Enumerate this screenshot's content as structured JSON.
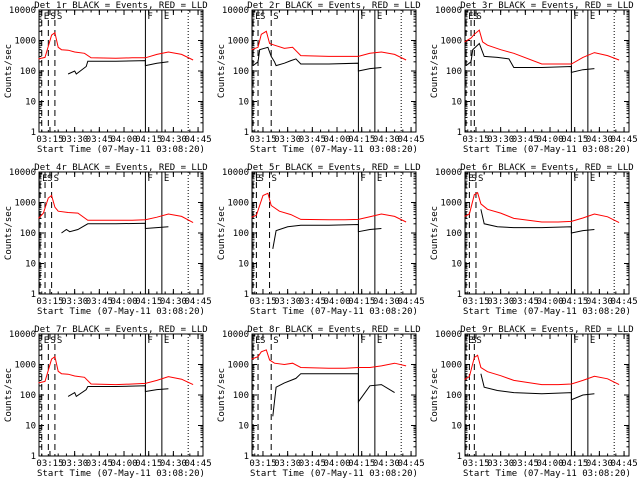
{
  "chart_data": [
    {
      "type": "line",
      "title": "Det_1r BLACK = Events, RED = LLD",
      "xlabel": "Start Time (07-May-11 03:08:20)",
      "ylabel": "Counts/sec",
      "ylim": [
        1,
        10000
      ],
      "yscale": "log",
      "ytick_labels": [
        "1",
        "10",
        "100",
        "1000",
        "10000"
      ],
      "xtick_labels": [
        "03:15",
        "03:30",
        "03:45",
        "04:00",
        "04:15",
        "04:30",
        "04:45"
      ],
      "markers": [
        {
          "label": "E",
          "x": "03:10"
        },
        {
          "label": "S",
          "x": "03:14"
        },
        {
          "label": "S",
          "x": "03:18"
        },
        {
          "label": "F",
          "x": "04:13"
        },
        {
          "label": "E",
          "x": "04:23"
        }
      ],
      "series": [
        {
          "color": "#000000",
          "x": [
            "03:26",
            "03:30",
            "03:31",
            "03:37",
            "03:38",
            "03:55",
            "04:13",
            "04:13",
            "04:20",
            "04:27"
          ],
          "y": [
            80,
            100,
            80,
            140,
            210,
            210,
            220,
            150,
            180,
            200
          ]
        },
        {
          "color": "#ff0000",
          "x": [
            "03:08",
            "03:12",
            "03:16",
            "03:18",
            "03:20",
            "03:22",
            "03:26",
            "03:30",
            "03:36",
            "03:40",
            "03:55",
            "04:05",
            "04:13",
            "04:20",
            "04:27",
            "04:35",
            "04:42"
          ],
          "y": [
            250,
            280,
            1500,
            1800,
            600,
            500,
            480,
            420,
            380,
            270,
            260,
            270,
            270,
            350,
            420,
            350,
            230
          ]
        }
      ]
    },
    {
      "type": "line",
      "title": "Det_2r BLACK = Events, RED = LLD",
      "xlabel": "Start Time (07-May-11 03:08:20)",
      "ylabel": "Counts/sec",
      "ylim": [
        1,
        10000
      ],
      "yscale": "log",
      "ytick_labels": [
        "1",
        "10",
        "100",
        "1000",
        "10000"
      ],
      "xtick_labels": [
        "03:15",
        "03:30",
        "03:45",
        "04:00",
        "04:15",
        "04:30",
        "04:45"
      ],
      "markers": [
        {
          "label": "E",
          "x": "03:09"
        },
        {
          "label": "S",
          "x": "03:12"
        },
        {
          "label": "S",
          "x": "03:20"
        },
        {
          "label": "F",
          "x": "04:13"
        },
        {
          "label": "E",
          "x": "04:23"
        }
      ],
      "series": [
        {
          "color": "#000000",
          "x": [
            "03:09",
            "03:12",
            "03:13",
            "03:18",
            "03:20",
            "03:22",
            "03:23",
            "03:28",
            "03:32",
            "03:35",
            "03:38",
            "03:55",
            "04:13",
            "04:13",
            "04:20",
            "04:27"
          ],
          "y": [
            150,
            200,
            500,
            600,
            300,
            200,
            150,
            180,
            220,
            250,
            170,
            170,
            180,
            100,
            120,
            130
          ]
        },
        {
          "color": "#ff0000",
          "x": [
            "03:08",
            "03:12",
            "03:14",
            "03:17",
            "03:19",
            "03:22",
            "03:28",
            "03:33",
            "03:38",
            "03:55",
            "04:05",
            "04:13",
            "04:20",
            "04:27",
            "04:35",
            "04:42"
          ],
          "y": [
            500,
            600,
            1600,
            2000,
            800,
            700,
            550,
            600,
            320,
            300,
            300,
            300,
            380,
            420,
            350,
            230
          ]
        }
      ]
    },
    {
      "type": "line",
      "title": "Det_3r BLACK = Events, RED = LLD",
      "xlabel": "Start Time (07-May-11 03:08:20)",
      "ylabel": "Counts/sec",
      "ylim": [
        1,
        10000
      ],
      "yscale": "log",
      "ytick_labels": [
        "1",
        "10",
        "100",
        "1000",
        "10000"
      ],
      "xtick_labels": [
        "03:15",
        "03:30",
        "03:45",
        "04:00",
        "04:15",
        "04:30",
        "04:45"
      ],
      "markers": [
        {
          "label": "E",
          "x": "03:09"
        },
        {
          "label": "S",
          "x": "03:12"
        },
        {
          "label": "S",
          "x": "03:14"
        },
        {
          "label": "F",
          "x": "04:13"
        },
        {
          "label": "E",
          "x": "04:23"
        }
      ],
      "series": [
        {
          "color": "#000000",
          "x": [
            "03:09",
            "03:12",
            "03:13",
            "03:17",
            "03:20",
            "03:28",
            "03:35",
            "03:38",
            "03:55",
            "04:13",
            "04:13",
            "04:20",
            "04:27"
          ],
          "y": [
            150,
            200,
            500,
            800,
            300,
            280,
            250,
            130,
            130,
            140,
            90,
            110,
            120
          ]
        },
        {
          "color": "#ff0000",
          "x": [
            "03:08",
            "03:12",
            "03:14",
            "03:17",
            "03:19",
            "03:22",
            "03:30",
            "03:38",
            "03:55",
            "04:05",
            "04:13",
            "04:20",
            "04:27",
            "04:35",
            "04:42"
          ],
          "y": [
            900,
            1200,
            1600,
            2200,
            900,
            700,
            500,
            380,
            170,
            170,
            170,
            280,
            400,
            320,
            230
          ]
        }
      ]
    },
    {
      "type": "line",
      "title": "Det_4r BLACK = Events, RED = LLD",
      "xlabel": "Start Time (07-May-11 03:08:20)",
      "ylabel": "Counts/sec",
      "ylim": [
        1,
        10000
      ],
      "yscale": "log",
      "ytick_labels": [
        "1",
        "10",
        "100",
        "1000",
        "10000"
      ],
      "xtick_labels": [
        "03:15",
        "03:30",
        "03:45",
        "04:00",
        "04:15",
        "04:30",
        "04:45"
      ],
      "markers": [
        {
          "label": "E",
          "x": "03:09"
        },
        {
          "label": "S",
          "x": "03:12"
        },
        {
          "label": "S",
          "x": "03:16"
        },
        {
          "label": "F",
          "x": "04:13"
        },
        {
          "label": "E",
          "x": "04:23"
        }
      ],
      "series": [
        {
          "color": "#000000",
          "x": [
            "03:22",
            "03:25",
            "03:27",
            "03:32",
            "03:38",
            "03:55",
            "04:13",
            "04:13",
            "04:20",
            "04:27"
          ],
          "y": [
            100,
            130,
            110,
            130,
            200,
            200,
            210,
            140,
            150,
            160
          ]
        },
        {
          "color": "#ff0000",
          "x": [
            "03:08",
            "03:11",
            "03:14",
            "03:16",
            "03:18",
            "03:20",
            "03:26",
            "03:32",
            "03:38",
            "03:55",
            "04:05",
            "04:13",
            "04:20",
            "04:27",
            "04:35",
            "04:42"
          ],
          "y": [
            300,
            450,
            1400,
            1700,
            700,
            520,
            470,
            450,
            260,
            260,
            260,
            270,
            330,
            420,
            350,
            220
          ]
        }
      ]
    },
    {
      "type": "line",
      "title": "Det_5r BLACK = Events, RED = LLD",
      "xlabel": "Start Time (07-May-11 03:08:20)",
      "ylabel": "Counts/sec",
      "ylim": [
        1,
        10000
      ],
      "yscale": "log",
      "ytick_labels": [
        "1",
        "10",
        "100",
        "1000",
        "10000"
      ],
      "xtick_labels": [
        "03:15",
        "03:30",
        "03:45",
        "04:00",
        "04:15",
        "04:30",
        "04:45"
      ],
      "markers": [
        {
          "label": "E",
          "x": "03:09"
        },
        {
          "label": "S",
          "x": "03:11"
        },
        {
          "label": "S",
          "x": "03:19"
        },
        {
          "label": "F",
          "x": "04:13"
        },
        {
          "label": "E",
          "x": "04:23"
        }
      ],
      "series": [
        {
          "color": "#000000",
          "x": [
            "03:21",
            "03:23",
            "03:30",
            "03:38",
            "03:55",
            "04:13",
            "04:13",
            "04:20",
            "04:27"
          ],
          "y": [
            30,
            120,
            160,
            180,
            180,
            190,
            110,
            130,
            140
          ]
        },
        {
          "color": "#ff0000",
          "x": [
            "03:08",
            "03:11",
            "03:15",
            "03:18",
            "03:20",
            "03:25",
            "03:32",
            "03:38",
            "03:55",
            "04:05",
            "04:13",
            "04:20",
            "04:27",
            "04:35",
            "04:42"
          ],
          "y": [
            330,
            380,
            1700,
            2000,
            800,
            520,
            400,
            280,
            270,
            270,
            280,
            340,
            420,
            350,
            230
          ]
        }
      ]
    },
    {
      "type": "line",
      "title": "Det_6r BLACK = Events, RED = LLD",
      "xlabel": "Start Time (07-May-11 03:08:20)",
      "ylabel": "Counts/sec",
      "ylim": [
        1,
        10000
      ],
      "yscale": "log",
      "ytick_labels": [
        "1",
        "10",
        "100",
        "1000",
        "10000"
      ],
      "xtick_labels": [
        "03:15",
        "03:30",
        "03:45",
        "04:00",
        "04:15",
        "04:30",
        "04:45"
      ],
      "markers": [
        {
          "label": "E",
          "x": "03:09"
        },
        {
          "label": "S",
          "x": "03:11"
        },
        {
          "label": "S",
          "x": "03:15"
        },
        {
          "label": "F",
          "x": "04:13"
        },
        {
          "label": "E",
          "x": "04:23"
        }
      ],
      "series": [
        {
          "color": "#000000",
          "x": [
            "03:18",
            "03:20",
            "03:28",
            "03:38",
            "03:55",
            "04:13",
            "04:13",
            "04:20",
            "04:27"
          ],
          "y": [
            600,
            200,
            160,
            150,
            150,
            160,
            100,
            120,
            130
          ]
        },
        {
          "color": "#ff0000",
          "x": [
            "03:08",
            "03:11",
            "03:14",
            "03:16",
            "03:18",
            "03:22",
            "03:30",
            "03:38",
            "03:55",
            "04:05",
            "04:13",
            "04:20",
            "04:27",
            "04:35",
            "04:42"
          ],
          "y": [
            350,
            420,
            1800,
            2100,
            900,
            600,
            450,
            300,
            230,
            230,
            240,
            310,
            420,
            340,
            220
          ]
        }
      ]
    },
    {
      "type": "line",
      "title": "Det_7r BLACK = Events, RED = LLD",
      "xlabel": "Start Time (07-May-11 03:08:20)",
      "ylabel": "Counts/sec",
      "ylim": [
        1,
        10000
      ],
      "yscale": "log",
      "ytick_labels": [
        "1",
        "10",
        "100",
        "1000",
        "10000"
      ],
      "xtick_labels": [
        "03:15",
        "03:30",
        "03:45",
        "04:00",
        "04:15",
        "04:30",
        "04:45"
      ],
      "markers": [
        {
          "label": "E",
          "x": "03:10"
        },
        {
          "label": "S",
          "x": "03:14"
        },
        {
          "label": "S",
          "x": "03:18"
        },
        {
          "label": "F",
          "x": "04:13"
        },
        {
          "label": "E",
          "x": "04:23"
        }
      ],
      "series": [
        {
          "color": "#000000",
          "x": [
            "03:26",
            "03:30",
            "03:31",
            "03:37",
            "03:38",
            "03:55",
            "04:13",
            "04:13",
            "04:20",
            "04:27"
          ],
          "y": [
            90,
            120,
            90,
            150,
            190,
            190,
            200,
            130,
            150,
            160
          ]
        },
        {
          "color": "#ff0000",
          "x": [
            "03:08",
            "03:12",
            "03:16",
            "03:18",
            "03:20",
            "03:22",
            "03:26",
            "03:30",
            "03:36",
            "03:40",
            "03:55",
            "04:05",
            "04:13",
            "04:20",
            "04:27",
            "04:35",
            "04:42"
          ],
          "y": [
            250,
            280,
            1500,
            1800,
            600,
            500,
            480,
            420,
            380,
            230,
            220,
            230,
            240,
            300,
            400,
            330,
            220
          ]
        }
      ]
    },
    {
      "type": "line",
      "title": "Det_8r BLACK = Events, RED = LLD",
      "xlabel": "Start Time (07-May-11 03:08:20)",
      "ylabel": "Counts/sec",
      "ylim": [
        1,
        10000
      ],
      "yscale": "log",
      "ytick_labels": [
        "1",
        "10",
        "100",
        "1000",
        "10000"
      ],
      "xtick_labels": [
        "03:15",
        "03:30",
        "03:45",
        "04:00",
        "04:15",
        "04:30",
        "04:45"
      ],
      "markers": [
        {
          "label": "E",
          "x": "03:09"
        },
        {
          "label": "S",
          "x": "03:12"
        },
        {
          "label": "S",
          "x": "03:20"
        },
        {
          "label": "F",
          "x": "04:13"
        },
        {
          "label": "E",
          "x": "04:23"
        }
      ],
      "series": [
        {
          "color": "#000000",
          "x": [
            "03:21",
            "03:23",
            "03:28",
            "03:32",
            "03:35",
            "03:38",
            "03:55",
            "04:13",
            "04:13",
            "04:20",
            "04:27",
            "04:35"
          ],
          "y": [
            20,
            180,
            250,
            300,
            350,
            500,
            500,
            500,
            60,
            200,
            220,
            120
          ]
        },
        {
          "color": "#ff0000",
          "x": [
            "03:08",
            "03:12",
            "03:14",
            "03:17",
            "03:19",
            "03:22",
            "03:28",
            "03:33",
            "03:38",
            "03:55",
            "04:05",
            "04:13",
            "04:20",
            "04:27",
            "04:35",
            "04:42"
          ],
          "y": [
            1500,
            1800,
            2600,
            3000,
            1400,
            1100,
            1000,
            1100,
            800,
            750,
            750,
            800,
            800,
            900,
            1100,
            900
          ]
        }
      ]
    },
    {
      "type": "line",
      "title": "Det_9r BLACK = Events, RED = LLD",
      "xlabel": "Start Time (07-May-11 03:08:20)",
      "ylabel": "Counts/sec",
      "ylim": [
        1,
        10000
      ],
      "yscale": "log",
      "ytick_labels": [
        "1",
        "10",
        "100",
        "1000",
        "10000"
      ],
      "xtick_labels": [
        "03:15",
        "03:30",
        "03:45",
        "04:00",
        "04:15",
        "04:30",
        "04:45"
      ],
      "markers": [
        {
          "label": "E",
          "x": "03:09"
        },
        {
          "label": "S",
          "x": "03:11"
        },
        {
          "label": "S",
          "x": "03:14"
        },
        {
          "label": "F",
          "x": "04:13"
        },
        {
          "label": "E",
          "x": "04:23"
        }
      ],
      "series": [
        {
          "color": "#000000",
          "x": [
            "03:18",
            "03:20",
            "03:28",
            "03:38",
            "03:55",
            "04:13",
            "04:13",
            "04:20",
            "04:27"
          ],
          "y": [
            500,
            180,
            140,
            120,
            110,
            120,
            70,
            100,
            110
          ]
        },
        {
          "color": "#ff0000",
          "x": [
            "03:08",
            "03:11",
            "03:14",
            "03:16",
            "03:18",
            "03:22",
            "03:30",
            "03:38",
            "03:55",
            "04:05",
            "04:13",
            "04:20",
            "04:27",
            "04:35",
            "04:42"
          ],
          "y": [
            320,
            400,
            1700,
            2000,
            800,
            580,
            430,
            300,
            220,
            220,
            230,
            300,
            410,
            340,
            220
          ]
        }
      ]
    }
  ]
}
